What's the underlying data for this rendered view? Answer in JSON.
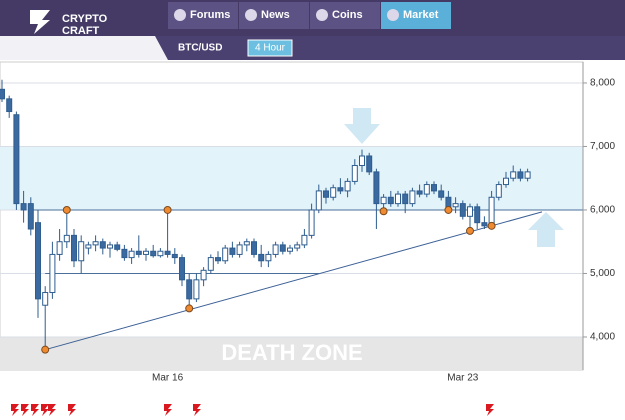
{
  "header": {
    "logo": [
      "CRYPTO",
      "CRAFT"
    ],
    "nav": [
      "Forums",
      "News",
      "Coins",
      "Market"
    ],
    "active": 3
  },
  "toolbar": {
    "pair": "BTC/USD",
    "timeframe": "4 Hour"
  },
  "chart_data": {
    "type": "candlestick",
    "annotation": "DEATH ZONE",
    "up_color": "#ffffff",
    "down_color": "#3b6aa0",
    "edge_color": "#2f5d8f",
    "ylim": [
      3480,
      8330
    ],
    "yticks": [
      {
        "value": 4000,
        "label": "4,000"
      },
      {
        "value": 5000,
        "label": "5,000"
      },
      {
        "value": 6000,
        "label": "6,000"
      },
      {
        "value": 7000,
        "label": "7,000"
      },
      {
        "value": 8000,
        "label": "8,000"
      }
    ],
    "band": [
      6000,
      7000
    ],
    "death_zone_top": 4000,
    "categories": [
      null,
      null,
      null,
      null,
      null,
      null,
      null,
      null,
      null,
      null,
      null,
      null,
      null,
      null,
      null,
      null,
      null,
      null,
      null,
      null,
      null,
      null,
      null,
      "Mar 16",
      null,
      null,
      null,
      null,
      null,
      null,
      null,
      null,
      null,
      null,
      null,
      null,
      null,
      null,
      null,
      null,
      null,
      null,
      null,
      null,
      null,
      null,
      null,
      null,
      null,
      null,
      null,
      null,
      null,
      null,
      null,
      null,
      null,
      null,
      null,
      null,
      null,
      null,
      null,
      null,
      "Mar 23",
      null,
      null,
      null,
      null,
      null,
      null,
      null,
      null,
      null
    ],
    "candles": [
      [
        7900,
        8050,
        7700,
        7750
      ],
      [
        7750,
        7800,
        7450,
        7550
      ],
      [
        7500,
        7550,
        6000,
        6100
      ],
      [
        6100,
        6300,
        5800,
        6000
      ],
      [
        6100,
        6200,
        5600,
        5700
      ],
      [
        5800,
        6000,
        4300,
        4600
      ],
      [
        4500,
        4800,
        3800,
        4700
      ],
      [
        4700,
        5500,
        4600,
        5300
      ],
      [
        5300,
        5700,
        5200,
        5500
      ],
      [
        5500,
        6000,
        5400,
        5600
      ],
      [
        5600,
        5700,
        5100,
        5200
      ],
      [
        5200,
        5600,
        5000,
        5500
      ],
      [
        5400,
        5500,
        5300,
        5450
      ],
      [
        5450,
        5600,
        5350,
        5500
      ],
      [
        5500,
        5550,
        5300,
        5400
      ],
      [
        5400,
        5500,
        5250,
        5450
      ],
      [
        5450,
        5500,
        5350,
        5380
      ],
      [
        5380,
        5450,
        5200,
        5250
      ],
      [
        5250,
        5400,
        5150,
        5350
      ],
      [
        5350,
        5600,
        5250,
        5300
      ],
      [
        5300,
        5400,
        5200,
        5350
      ],
      [
        5350,
        5450,
        5250,
        5280
      ],
      [
        5280,
        5400,
        5250,
        5350
      ],
      [
        5350,
        6000,
        5250,
        5300
      ],
      [
        5300,
        5400,
        5150,
        5250
      ],
      [
        5250,
        5300,
        4800,
        4900
      ],
      [
        4900,
        5000,
        4450,
        4600
      ],
      [
        4600,
        5000,
        4550,
        4900
      ],
      [
        4900,
        5100,
        4800,
        5050
      ],
      [
        5050,
        5300,
        5000,
        5250
      ],
      [
        5250,
        5350,
        5150,
        5200
      ],
      [
        5200,
        5450,
        5150,
        5400
      ],
      [
        5400,
        5500,
        5250,
        5300
      ],
      [
        5300,
        5500,
        5250,
        5450
      ],
      [
        5450,
        5550,
        5350,
        5500
      ],
      [
        5500,
        5550,
        5250,
        5300
      ],
      [
        5300,
        5450,
        5100,
        5200
      ],
      [
        5200,
        5350,
        5100,
        5300
      ],
      [
        5300,
        5500,
        5250,
        5450
      ],
      [
        5450,
        5500,
        5300,
        5350
      ],
      [
        5350,
        5450,
        5300,
        5400
      ],
      [
        5400,
        5500,
        5350,
        5450
      ],
      [
        5450,
        5700,
        5400,
        5600
      ],
      [
        5600,
        6100,
        5550,
        6000
      ],
      [
        6000,
        6400,
        5950,
        6300
      ],
      [
        6300,
        6350,
        6100,
        6200
      ],
      [
        6200,
        6400,
        6150,
        6350
      ],
      [
        6350,
        6500,
        6250,
        6300
      ],
      [
        6300,
        6500,
        6200,
        6450
      ],
      [
        6450,
        6800,
        6400,
        6700
      ],
      [
        6700,
        6950,
        6600,
        6850
      ],
      [
        6850,
        6900,
        6550,
        6600
      ],
      [
        6600,
        6650,
        5700,
        6100
      ],
      [
        6100,
        6250,
        5950,
        6200
      ],
      [
        6200,
        6300,
        6050,
        6100
      ],
      [
        6100,
        6300,
        6050,
        6250
      ],
      [
        6250,
        6300,
        5950,
        6100
      ],
      [
        6100,
        6350,
        6050,
        6300
      ],
      [
        6300,
        6400,
        6200,
        6250
      ],
      [
        6250,
        6450,
        6200,
        6400
      ],
      [
        6400,
        6450,
        6250,
        6300
      ],
      [
        6300,
        6400,
        6150,
        6200
      ],
      [
        6200,
        6300,
        6000,
        6050
      ],
      [
        6050,
        6200,
        5950,
        6100
      ],
      [
        6100,
        6150,
        5850,
        5900
      ],
      [
        5900,
        6100,
        5650,
        6050
      ],
      [
        6050,
        6100,
        5700,
        5800
      ],
      [
        5800,
        5900,
        5700,
        5750
      ],
      [
        5750,
        6300,
        5700,
        6200
      ],
      [
        6200,
        6450,
        6150,
        6400
      ],
      [
        6400,
        6600,
        6350,
        6500
      ],
      [
        6500,
        6700,
        6450,
        6600
      ],
      [
        6600,
        6650,
        6450,
        6500
      ],
      [
        6500,
        6650,
        6450,
        6600
      ]
    ],
    "markers": [
      {
        "x": 6,
        "value": 3800
      },
      {
        "x": 9,
        "value": 6000
      },
      {
        "x": 23,
        "value": 6000
      },
      {
        "x": 26,
        "value": 4450
      },
      {
        "x": 53,
        "value": 5980
      },
      {
        "x": 62,
        "value": 6000
      },
      {
        "x": 65,
        "value": 5670
      },
      {
        "x": 68,
        "value": 5750
      }
    ],
    "marker_color": "#f08a30",
    "trend": [
      [
        6,
        3800
      ],
      [
        75,
        5970
      ]
    ],
    "levels": [
      {
        "value": 6000,
        "from": 4
      },
      {
        "value": 5000,
        "from": 6,
        "to": 44
      }
    ]
  }
}
